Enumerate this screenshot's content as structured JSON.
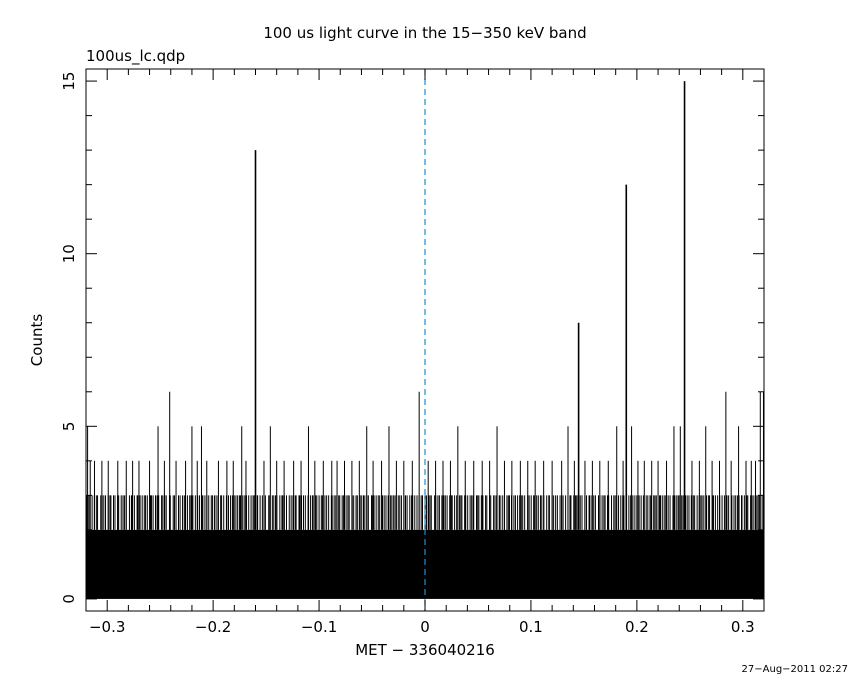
{
  "chart_data": {
    "type": "bar",
    "title": "100 us light curve in the 15−350 keV band",
    "subtitle": "100us_lc.qdp",
    "xlabel": "MET − 336040216",
    "ylabel": "Counts",
    "footer": "27−Aug−2011 02:27",
    "xlim": [
      -0.32,
      0.32
    ],
    "ylim": [
      -0.35,
      15.35
    ],
    "xticks": [
      {
        "value": -0.3,
        "label": "−0.3"
      },
      {
        "value": -0.2,
        "label": "−0.2"
      },
      {
        "value": -0.1,
        "label": "−0.1"
      },
      {
        "value": 0,
        "label": "0"
      },
      {
        "value": 0.1,
        "label": "0.1"
      },
      {
        "value": 0.2,
        "label": "0.2"
      },
      {
        "value": 0.3,
        "label": "0.3"
      }
    ],
    "yticks": [
      {
        "value": 0,
        "label": "0"
      },
      {
        "value": 5,
        "label": "5"
      },
      {
        "value": 10,
        "label": "10"
      },
      {
        "value": 15,
        "label": "15"
      }
    ],
    "trigger_line": {
      "x": 0,
      "color": "#1a8fd0",
      "style": "dashed"
    },
    "bin_width": 0.0001,
    "baseline_band": {
      "from": 0,
      "to": 2
    },
    "peaks": [
      {
        "x": -0.3185,
        "y": 5
      },
      {
        "x": -0.316,
        "y": 4
      },
      {
        "x": -0.312,
        "y": 4
      },
      {
        "x": -0.305,
        "y": 4
      },
      {
        "x": -0.299,
        "y": 4
      },
      {
        "x": -0.29,
        "y": 4
      },
      {
        "x": -0.282,
        "y": 4
      },
      {
        "x": -0.276,
        "y": 4
      },
      {
        "x": -0.27,
        "y": 4
      },
      {
        "x": -0.26,
        "y": 4
      },
      {
        "x": -0.252,
        "y": 5
      },
      {
        "x": -0.246,
        "y": 4
      },
      {
        "x": -0.241,
        "y": 6
      },
      {
        "x": -0.235,
        "y": 4
      },
      {
        "x": -0.226,
        "y": 4
      },
      {
        "x": -0.22,
        "y": 5
      },
      {
        "x": -0.215,
        "y": 4
      },
      {
        "x": -0.211,
        "y": 5
      },
      {
        "x": -0.206,
        "y": 4
      },
      {
        "x": -0.195,
        "y": 4
      },
      {
        "x": -0.187,
        "y": 4
      },
      {
        "x": -0.181,
        "y": 4
      },
      {
        "x": -0.173,
        "y": 5
      },
      {
        "x": -0.169,
        "y": 4
      },
      {
        "x": -0.16,
        "y": 13
      },
      {
        "x": -0.152,
        "y": 4
      },
      {
        "x": -0.146,
        "y": 5
      },
      {
        "x": -0.14,
        "y": 4
      },
      {
        "x": -0.133,
        "y": 4
      },
      {
        "x": -0.124,
        "y": 4
      },
      {
        "x": -0.117,
        "y": 4
      },
      {
        "x": -0.11,
        "y": 5
      },
      {
        "x": -0.104,
        "y": 4
      },
      {
        "x": -0.096,
        "y": 4
      },
      {
        "x": -0.088,
        "y": 4
      },
      {
        "x": -0.083,
        "y": 4
      },
      {
        "x": -0.076,
        "y": 4
      },
      {
        "x": -0.069,
        "y": 4
      },
      {
        "x": -0.062,
        "y": 4
      },
      {
        "x": -0.055,
        "y": 5
      },
      {
        "x": -0.049,
        "y": 4
      },
      {
        "x": -0.041,
        "y": 4
      },
      {
        "x": -0.034,
        "y": 5
      },
      {
        "x": -0.027,
        "y": 4
      },
      {
        "x": -0.02,
        "y": 4
      },
      {
        "x": -0.012,
        "y": 4
      },
      {
        "x": -0.0055,
        "y": 6
      },
      {
        "x": 0.003,
        "y": 4
      },
      {
        "x": 0.01,
        "y": 4
      },
      {
        "x": 0.017,
        "y": 4
      },
      {
        "x": 0.024,
        "y": 4
      },
      {
        "x": 0.031,
        "y": 5
      },
      {
        "x": 0.038,
        "y": 4
      },
      {
        "x": 0.046,
        "y": 4
      },
      {
        "x": 0.054,
        "y": 4
      },
      {
        "x": 0.061,
        "y": 4
      },
      {
        "x": 0.068,
        "y": 5
      },
      {
        "x": 0.075,
        "y": 4
      },
      {
        "x": 0.082,
        "y": 4
      },
      {
        "x": 0.09,
        "y": 4
      },
      {
        "x": 0.097,
        "y": 4
      },
      {
        "x": 0.104,
        "y": 4
      },
      {
        "x": 0.112,
        "y": 4
      },
      {
        "x": 0.12,
        "y": 4
      },
      {
        "x": 0.129,
        "y": 4
      },
      {
        "x": 0.135,
        "y": 5
      },
      {
        "x": 0.141,
        "y": 4
      },
      {
        "x": 0.145,
        "y": 8
      },
      {
        "x": 0.151,
        "y": 4
      },
      {
        "x": 0.158,
        "y": 4
      },
      {
        "x": 0.165,
        "y": 4
      },
      {
        "x": 0.173,
        "y": 4
      },
      {
        "x": 0.181,
        "y": 5
      },
      {
        "x": 0.187,
        "y": 4
      },
      {
        "x": 0.19,
        "y": 12
      },
      {
        "x": 0.195,
        "y": 5
      },
      {
        "x": 0.201,
        "y": 4
      },
      {
        "x": 0.207,
        "y": 4
      },
      {
        "x": 0.214,
        "y": 4
      },
      {
        "x": 0.22,
        "y": 4
      },
      {
        "x": 0.228,
        "y": 4
      },
      {
        "x": 0.235,
        "y": 5
      },
      {
        "x": 0.241,
        "y": 5
      },
      {
        "x": 0.245,
        "y": 15
      },
      {
        "x": 0.252,
        "y": 4
      },
      {
        "x": 0.259,
        "y": 4
      },
      {
        "x": 0.265,
        "y": 5
      },
      {
        "x": 0.271,
        "y": 4
      },
      {
        "x": 0.278,
        "y": 4
      },
      {
        "x": 0.284,
        "y": 6
      },
      {
        "x": 0.289,
        "y": 4
      },
      {
        "x": 0.296,
        "y": 5
      },
      {
        "x": 0.303,
        "y": 4
      },
      {
        "x": 0.308,
        "y": 4
      },
      {
        "x": 0.312,
        "y": 4
      },
      {
        "x": 0.3165,
        "y": 6
      },
      {
        "x": 0.3195,
        "y": 6
      }
    ],
    "grid": false,
    "legend": "none"
  }
}
